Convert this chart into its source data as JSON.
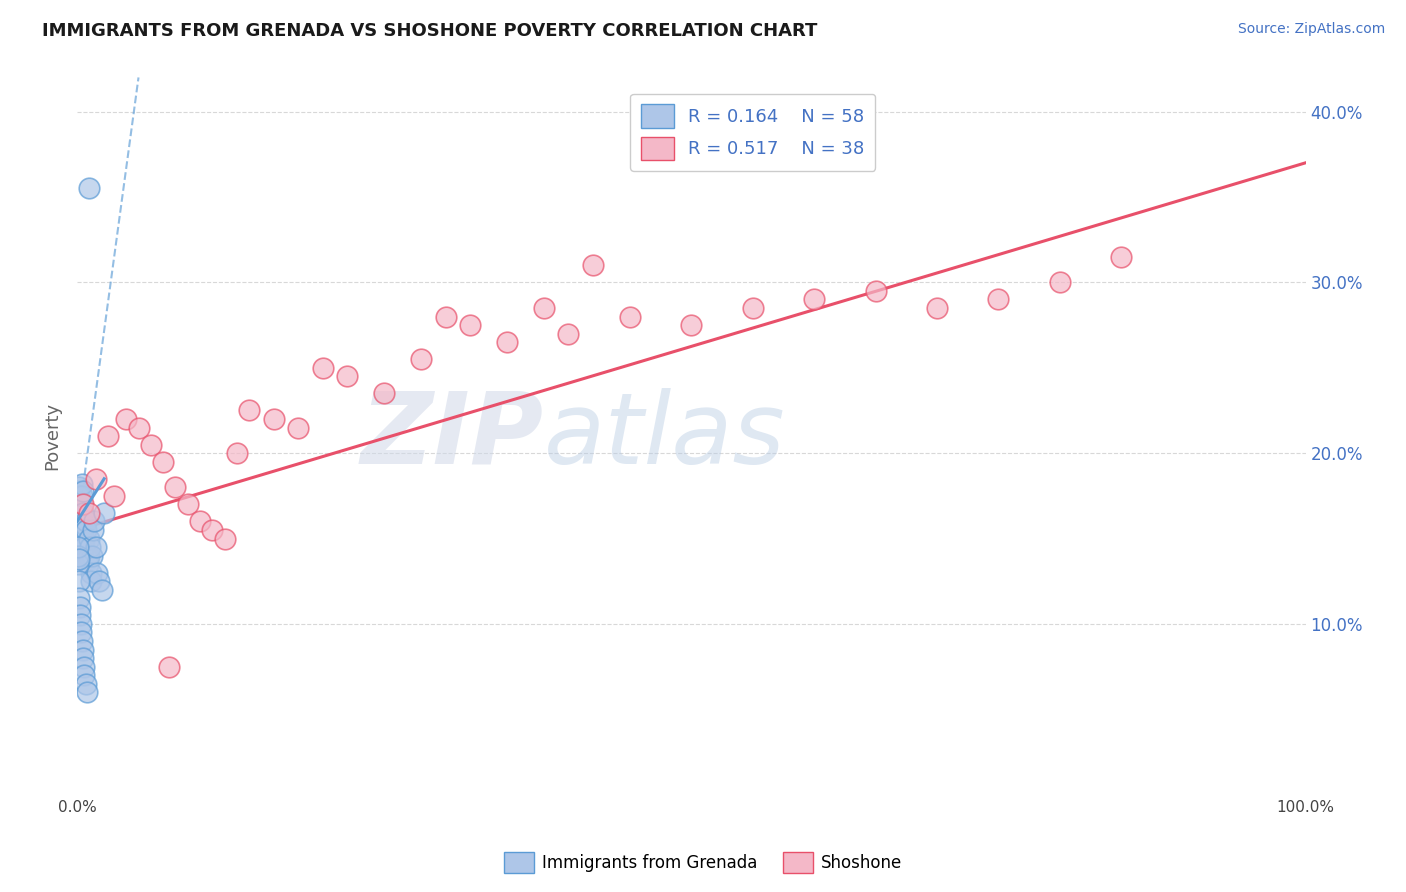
{
  "title": "IMMIGRANTS FROM GRENADA VS SHOSHONE POVERTY CORRELATION CHART",
  "source_text": "Source: ZipAtlas.com",
  "ylabel": "Poverty",
  "xlim": [
    0,
    100
  ],
  "ylim": [
    0,
    42
  ],
  "yticks": [
    0,
    10,
    20,
    30,
    40
  ],
  "series1_label": "Immigrants from Grenada",
  "series2_label": "Shoshone",
  "color1_face": "#aec6e8",
  "color1_edge": "#5b9bd5",
  "color2_face": "#f4b8c8",
  "color2_edge": "#e8506a",
  "trendline1_color": "#5b9bd5",
  "trendline2_color": "#e8506a",
  "watermark_zip": "ZIP",
  "watermark_atlas": "atlas",
  "background_color": "#ffffff",
  "grid_color": "#d8d8d8",
  "legend_color": "#4472c4",
  "blue_scatter_x": [
    0.05,
    0.08,
    0.1,
    0.12,
    0.15,
    0.18,
    0.2,
    0.22,
    0.25,
    0.28,
    0.3,
    0.32,
    0.35,
    0.38,
    0.4,
    0.42,
    0.45,
    0.48,
    0.5,
    0.55,
    0.6,
    0.65,
    0.7,
    0.75,
    0.8,
    0.85,
    0.9,
    0.95,
    1.0,
    1.05,
    1.1,
    1.15,
    1.2,
    1.3,
    1.4,
    1.5,
    1.6,
    1.8,
    2.0,
    2.2,
    0.05,
    0.08,
    0.1,
    0.12,
    0.15,
    0.18,
    0.2,
    0.25,
    0.3,
    0.35,
    0.4,
    0.45,
    0.5,
    0.55,
    0.6,
    0.7,
    0.8,
    1.0
  ],
  "blue_scatter_y": [
    16.5,
    17.2,
    17.8,
    18.0,
    16.8,
    17.5,
    16.0,
    15.5,
    15.8,
    16.2,
    15.0,
    14.8,
    16.5,
    17.0,
    17.5,
    18.2,
    17.8,
    16.5,
    15.5,
    15.0,
    14.5,
    15.8,
    16.0,
    15.5,
    14.0,
    13.8,
    13.5,
    14.0,
    15.0,
    14.5,
    13.0,
    12.5,
    14.0,
    15.5,
    16.0,
    14.5,
    13.0,
    12.5,
    12.0,
    16.5,
    13.5,
    14.0,
    14.5,
    13.8,
    12.5,
    11.5,
    11.0,
    10.5,
    10.0,
    9.5,
    9.0,
    8.5,
    8.0,
    7.5,
    7.0,
    6.5,
    6.0,
    35.5
  ],
  "pink_scatter_x": [
    0.5,
    1.0,
    1.5,
    2.5,
    3.0,
    4.0,
    5.0,
    6.0,
    7.0,
    8.0,
    9.0,
    10.0,
    11.0,
    12.0,
    13.0,
    14.0,
    16.0,
    18.0,
    20.0,
    22.0,
    25.0,
    28.0,
    30.0,
    32.0,
    35.0,
    38.0,
    40.0,
    45.0,
    50.0,
    55.0,
    60.0,
    65.0,
    70.0,
    75.0,
    80.0,
    85.0,
    42.0,
    7.5
  ],
  "pink_scatter_y": [
    17.0,
    16.5,
    18.5,
    21.0,
    17.5,
    22.0,
    21.5,
    20.5,
    19.5,
    18.0,
    17.0,
    16.0,
    15.5,
    15.0,
    20.0,
    22.5,
    22.0,
    21.5,
    25.0,
    24.5,
    23.5,
    25.5,
    28.0,
    27.5,
    26.5,
    28.5,
    27.0,
    28.0,
    27.5,
    28.5,
    29.0,
    29.5,
    28.5,
    29.0,
    30.0,
    31.5,
    31.0,
    7.5
  ],
  "blue_trend_dashed_x0": 0,
  "blue_trend_dashed_y0": 15.5,
  "blue_trend_dashed_x1": 5,
  "blue_trend_dashed_y1": 42,
  "blue_solid_x0": 0,
  "blue_solid_y0": 16.0,
  "blue_solid_x1": 2.2,
  "blue_solid_y1": 18.5,
  "pink_trend_x0": 0,
  "pink_trend_y0": 15.5,
  "pink_trend_x1": 100,
  "pink_trend_y1": 37.0
}
